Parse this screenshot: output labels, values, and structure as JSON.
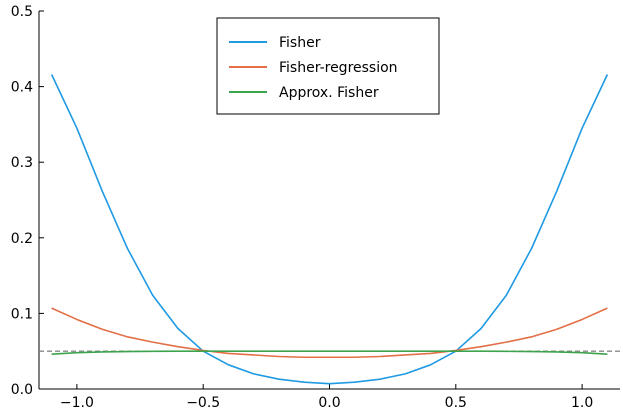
{
  "chart_data": {
    "type": "line",
    "title": "",
    "xlabel": "",
    "ylabel": "",
    "xlim": [
      -1.15,
      1.15
    ],
    "ylim": [
      0.0,
      0.5
    ],
    "xticks": [
      -1.0,
      -0.5,
      0.0,
      0.5,
      1.0
    ],
    "xtick_labels": [
      "−1.0",
      "−0.5",
      "0.0",
      "0.5",
      "1.0"
    ],
    "yticks": [
      0.0,
      0.1,
      0.2,
      0.3,
      0.4,
      0.5
    ],
    "ytick_labels": [
      "0.0",
      "0.1",
      "0.2",
      "0.3",
      "0.4",
      "0.5"
    ],
    "grid": false,
    "legend_position": "top-center",
    "reference_line": {
      "y": 0.05,
      "style": "dashed",
      "color": "#888888"
    },
    "series": [
      {
        "name": "Fisher",
        "color": "#1f9ae3",
        "x": [
          -1.1,
          -1.0,
          -0.9,
          -0.8,
          -0.7,
          -0.6,
          -0.5,
          -0.4,
          -0.3,
          -0.2,
          -0.1,
          0.0,
          0.1,
          0.2,
          0.3,
          0.4,
          0.5,
          0.6,
          0.7,
          0.8,
          0.9,
          1.0,
          1.1
        ],
        "y": [
          0.416,
          0.345,
          0.262,
          0.186,
          0.124,
          0.08,
          0.05,
          0.032,
          0.02,
          0.013,
          0.009,
          0.007,
          0.009,
          0.013,
          0.02,
          0.032,
          0.05,
          0.08,
          0.124,
          0.186,
          0.262,
          0.345,
          0.416
        ]
      },
      {
        "name": "Fisher-regression",
        "color": "#e26f46",
        "x": [
          -1.1,
          -1.0,
          -0.9,
          -0.8,
          -0.7,
          -0.6,
          -0.5,
          -0.4,
          -0.3,
          -0.2,
          -0.1,
          0.0,
          0.1,
          0.2,
          0.3,
          0.4,
          0.5,
          0.6,
          0.7,
          0.8,
          0.9,
          1.0,
          1.1
        ],
        "y": [
          0.107,
          0.092,
          0.079,
          0.069,
          0.062,
          0.056,
          0.051,
          0.047,
          0.045,
          0.043,
          0.042,
          0.042,
          0.042,
          0.043,
          0.045,
          0.047,
          0.051,
          0.056,
          0.062,
          0.069,
          0.079,
          0.092,
          0.107
        ]
      },
      {
        "name": "Approx. Fisher",
        "color": "#3da44d",
        "x": [
          -1.1,
          -1.0,
          -0.9,
          -0.8,
          -0.7,
          -0.6,
          -0.5,
          -0.4,
          -0.3,
          -0.2,
          -0.1,
          0.0,
          0.1,
          0.2,
          0.3,
          0.4,
          0.5,
          0.6,
          0.7,
          0.8,
          0.9,
          1.0,
          1.1
        ],
        "y": [
          0.046,
          0.048,
          0.049,
          0.0495,
          0.0498,
          0.05,
          0.05,
          0.05,
          0.05,
          0.05,
          0.05,
          0.05,
          0.05,
          0.05,
          0.05,
          0.05,
          0.05,
          0.05,
          0.0498,
          0.0495,
          0.049,
          0.048,
          0.046
        ]
      }
    ]
  }
}
